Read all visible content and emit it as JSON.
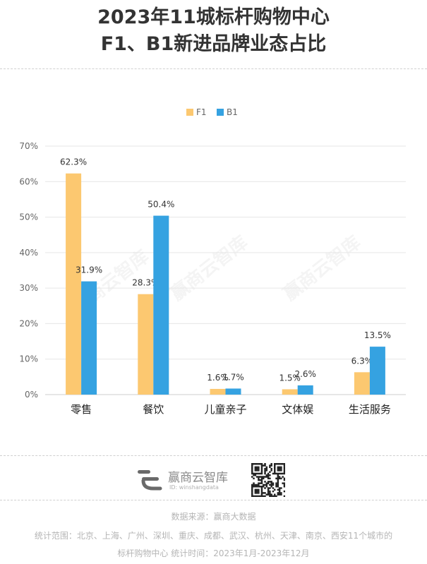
{
  "title_line1": "2023年11城标杆购物中心",
  "title_line2": "F1、B1新进品牌业态占比",
  "watermark": "赢商云智库",
  "chart_data": {
    "type": "bar",
    "categories": [
      "零售",
      "餐饮",
      "儿童亲子",
      "文体娱",
      "生活服务"
    ],
    "series": [
      {
        "name": "F1",
        "color": "#fcc870",
        "values": [
          62.3,
          28.3,
          1.6,
          1.5,
          6.3
        ],
        "labels": [
          "62.3%",
          "28.3%",
          "1.6%",
          "1.5%",
          "6.3%"
        ]
      },
      {
        "name": "B1",
        "color": "#35a2e1",
        "values": [
          31.9,
          50.4,
          1.7,
          2.6,
          13.5
        ],
        "labels": [
          "31.9%",
          "50.4%",
          "1.7%",
          "2.6%",
          "13.5%"
        ]
      }
    ],
    "ylim": [
      0,
      70
    ],
    "yticks": [
      "0%",
      "10%",
      "20%",
      "30%",
      "40%",
      "50%",
      "60%",
      "70%"
    ],
    "legend_position": "top-center",
    "grid": true
  },
  "brand": {
    "name": "赢商云智库",
    "id": "ID: winshangdata"
  },
  "footer": {
    "source": "数据来源：赢商大数据",
    "scope_line1": "统计范围：北京、上海、广州、深圳、重庆、成都、武汉、杭州、天津、南京、西安11个城市的",
    "scope_line2": "标杆购物中心  统计时间：2023年1月-2023年12月"
  }
}
